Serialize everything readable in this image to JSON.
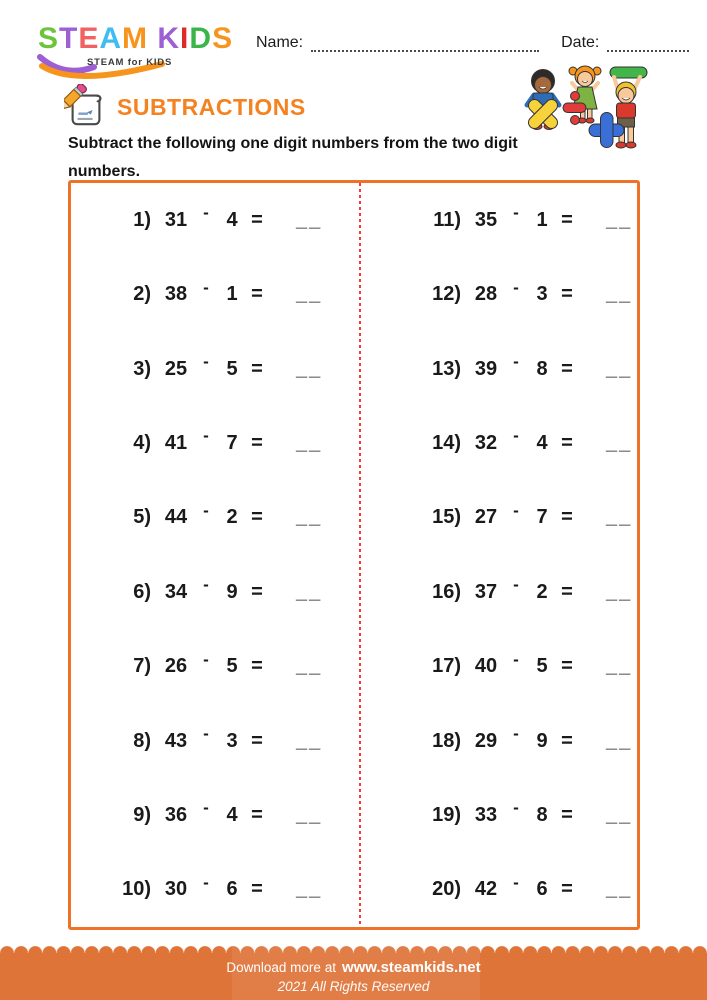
{
  "logo": {
    "letters": [
      {
        "ch": "S",
        "color": "#6CC43C"
      },
      {
        "ch": "T",
        "color": "#9C5FD4"
      },
      {
        "ch": "E",
        "color": "#F26161"
      },
      {
        "ch": "A",
        "color": "#3FBDF2"
      },
      {
        "ch": "M",
        "color": "#F7941D"
      },
      {
        "ch": " ",
        "color": "#000000"
      },
      {
        "ch": "K",
        "color": "#9C5FD4"
      },
      {
        "ch": "I",
        "color": "#DE2A2A"
      },
      {
        "ch": "D",
        "color": "#3BB54A"
      },
      {
        "ch": "S",
        "color": "#F7941D"
      }
    ],
    "tagline": "STEAM for KIDS"
  },
  "fields": {
    "name_label": "Name:",
    "date_label": "Date:",
    "name_value": "",
    "date_value": ""
  },
  "title": {
    "heading": "SUBTRACTIONS",
    "accent_color": "#F58220"
  },
  "instruction": "Subtract the following one digit numbers from the two digit numbers.",
  "illustration": {
    "description": "three kids holding math symbols",
    "symbol_colors": {
      "multiply": "#F8D23A",
      "divide": "#E23B3B",
      "plus": "#3A6FD8",
      "minus": "#43B649"
    }
  },
  "worksheet": {
    "minus_sign": "-",
    "equals_sign": "=",
    "answer_blank": "__",
    "border_color": "#EE7328",
    "divider_color": "#F23B3B",
    "columns": [
      {
        "problems": [
          {
            "label": "1)",
            "minuend": "31",
            "subtrahend": "4"
          },
          {
            "label": "2)",
            "minuend": "38",
            "subtrahend": "1"
          },
          {
            "label": "3)",
            "minuend": "25",
            "subtrahend": "5"
          },
          {
            "label": "4)",
            "minuend": "41",
            "subtrahend": "7"
          },
          {
            "label": "5)",
            "minuend": "44",
            "subtrahend": "2"
          },
          {
            "label": "6)",
            "minuend": "34",
            "subtrahend": "9"
          },
          {
            "label": "7)",
            "minuend": "26",
            "subtrahend": "5"
          },
          {
            "label": "8)",
            "minuend": "43",
            "subtrahend": "3"
          },
          {
            "label": "9)",
            "minuend": "36",
            "subtrahend": "4"
          },
          {
            "label": "10)",
            "minuend": "30",
            "subtrahend": "6"
          }
        ]
      },
      {
        "problems": [
          {
            "label": "11)",
            "minuend": "35",
            "subtrahend": "1"
          },
          {
            "label": "12)",
            "minuend": "28",
            "subtrahend": "3"
          },
          {
            "label": "13)",
            "minuend": "39",
            "subtrahend": "8"
          },
          {
            "label": "14)",
            "minuend": "32",
            "subtrahend": "4"
          },
          {
            "label": "15)",
            "minuend": "27",
            "subtrahend": "7"
          },
          {
            "label": "16)",
            "minuend": "37",
            "subtrahend": "2"
          },
          {
            "label": "17)",
            "minuend": "40",
            "subtrahend": "5"
          },
          {
            "label": "18)",
            "minuend": "29",
            "subtrahend": "9"
          },
          {
            "label": "19)",
            "minuend": "33",
            "subtrahend": "8"
          },
          {
            "label": "20)",
            "minuend": "42",
            "subtrahend": "6"
          }
        ]
      }
    ]
  },
  "footer": {
    "download_prefix": "Download more at",
    "site": "www.steamkids.net",
    "rights": "2021 All Rights Reserved",
    "band_color": "#DF7438"
  }
}
